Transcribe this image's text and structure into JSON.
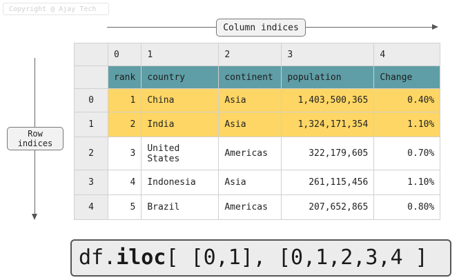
{
  "copyright": "Copyright @ Ajay Tech",
  "column_indices_label": "Column indices",
  "row_indices_label": [
    "Row",
    "indices"
  ],
  "table": {
    "col_indices": [
      "0",
      "1",
      "2",
      "3",
      "4"
    ],
    "headers": [
      "rank",
      "country",
      "continent",
      "population",
      "Change"
    ],
    "rows": [
      {
        "index": "0",
        "cells": [
          "1",
          "China",
          "Asia",
          "1,403,500,365",
          "0.40%"
        ],
        "selected": true
      },
      {
        "index": "1",
        "cells": [
          "2",
          "India",
          "Asia",
          "1,324,171,354",
          "1.10%"
        ],
        "selected": true
      },
      {
        "index": "2",
        "cells": [
          "3",
          "United States",
          "Americas",
          "322,179,605",
          "0.70%"
        ],
        "selected": false
      },
      {
        "index": "3",
        "cells": [
          "4",
          "Indonesia",
          "Asia",
          "261,115,456",
          "1.10%"
        ],
        "selected": false
      },
      {
        "index": "4",
        "cells": [
          "5",
          "Brazil",
          "Americas",
          "207,652,865",
          "0.80%"
        ],
        "selected": false
      }
    ]
  },
  "code": {
    "prefix": "df.",
    "method": "iloc",
    "args": "[ [0,1], [0,1,2,3,4 ]"
  },
  "colors": {
    "header_bg": "#5f9ea6",
    "selected_bg": "#fdd665",
    "index_bg": "#ececec"
  }
}
